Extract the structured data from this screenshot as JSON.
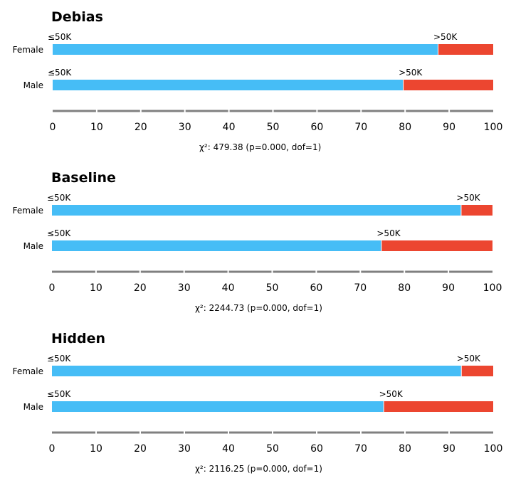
{
  "colors": {
    "le50k": "#46bdf6",
    "gt50k": "#ec4630",
    "axis": "#808080"
  },
  "chart_data": [
    {
      "type": "bar",
      "orientation": "horizontal",
      "stacked": true,
      "title": "Debias",
      "xlim": [
        0,
        100
      ],
      "xticks": [
        "0",
        "10",
        "20",
        "30",
        "40",
        "50",
        "60",
        "70",
        "80",
        "90",
        "100"
      ],
      "categories": [
        "Female",
        "Male"
      ],
      "series": [
        {
          "name": "≤50K",
          "values": [
            87.4,
            79.5
          ]
        },
        {
          "name": ">50K",
          "values": [
            12.6,
            20.5
          ]
        }
      ],
      "stat": "χ²: 479.38 (p=0.000, dof=1)"
    },
    {
      "type": "bar",
      "orientation": "horizontal",
      "stacked": true,
      "title": "Baseline",
      "xlim": [
        0,
        100
      ],
      "xticks": [
        "0",
        "10",
        "20",
        "30",
        "40",
        "50",
        "60",
        "70",
        "80",
        "90",
        "100"
      ],
      "categories": [
        "Female",
        "Male"
      ],
      "series": [
        {
          "name": "≤50K",
          "values": [
            92.8,
            74.7
          ]
        },
        {
          "name": ">50K",
          "values": [
            7.2,
            25.3
          ]
        }
      ],
      "stat": "χ²: 2244.73 (p=0.000, dof=1)"
    },
    {
      "type": "bar",
      "orientation": "horizontal",
      "stacked": true,
      "title": "Hidden",
      "xlim": [
        0,
        100
      ],
      "xticks": [
        "0",
        "10",
        "20",
        "30",
        "40",
        "50",
        "60",
        "70",
        "80",
        "90",
        "100"
      ],
      "categories": [
        "Female",
        "Male"
      ],
      "series": [
        {
          "name": "≤50K",
          "values": [
            92.7,
            75.1
          ]
        },
        {
          "name": ">50K",
          "values": [
            7.3,
            24.9
          ]
        }
      ],
      "stat": "χ²: 2116.25 (p=0.000, dof=1)"
    }
  ]
}
